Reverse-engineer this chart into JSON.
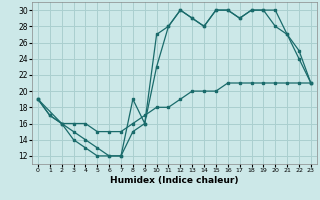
{
  "xlabel": "Humidex (Indice chaleur)",
  "bg_color": "#cce8e8",
  "grid_color": "#aacfcf",
  "line_color": "#1a6b6b",
  "xlim": [
    -0.5,
    23.5
  ],
  "ylim": [
    11,
    31
  ],
  "xticks": [
    0,
    1,
    2,
    3,
    4,
    5,
    6,
    7,
    8,
    9,
    10,
    11,
    12,
    13,
    14,
    15,
    16,
    17,
    18,
    19,
    20,
    21,
    22,
    23
  ],
  "yticks": [
    12,
    14,
    16,
    18,
    20,
    22,
    24,
    26,
    28,
    30
  ],
  "line1_x": [
    0,
    1,
    2,
    3,
    4,
    5,
    6,
    7,
    8,
    9,
    10,
    11,
    12,
    13,
    14,
    15,
    16,
    17,
    18,
    19,
    20,
    21,
    22,
    23
  ],
  "line1_y": [
    19,
    17,
    16,
    15,
    14,
    13,
    12,
    12,
    19,
    16,
    27,
    28,
    30,
    29,
    28,
    30,
    30,
    29,
    30,
    30,
    30,
    27,
    24,
    21
  ],
  "line2_x": [
    0,
    1,
    2,
    3,
    4,
    5,
    6,
    7,
    8,
    9,
    10,
    11,
    12,
    13,
    14,
    15,
    16,
    17,
    18,
    19,
    20,
    21,
    22,
    23
  ],
  "line2_y": [
    19,
    17,
    16,
    14,
    13,
    12,
    12,
    12,
    15,
    16,
    23,
    28,
    30,
    29,
    28,
    30,
    30,
    29,
    30,
    30,
    28,
    27,
    25,
    21
  ],
  "line3_x": [
    0,
    2,
    3,
    4,
    5,
    6,
    7,
    8,
    9,
    10,
    11,
    12,
    13,
    14,
    15,
    16,
    17,
    18,
    19,
    20,
    21,
    22,
    23
  ],
  "line3_y": [
    19,
    16,
    16,
    16,
    15,
    15,
    15,
    16,
    17,
    18,
    18,
    19,
    20,
    20,
    20,
    21,
    21,
    21,
    21,
    21,
    21,
    21,
    21
  ]
}
